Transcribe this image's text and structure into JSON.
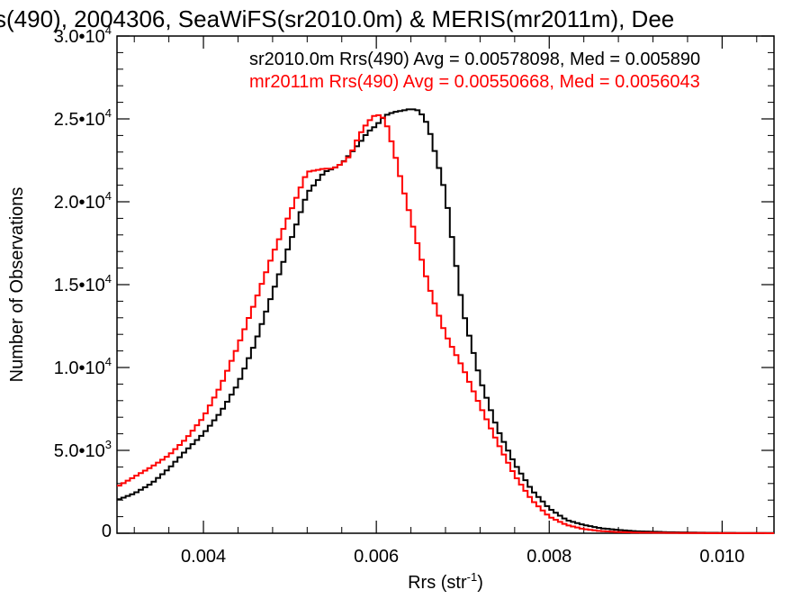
{
  "chart_data": {
    "type": "line",
    "title": "s(490), 2004306, SeaWiFS(sr2010.0m) & MERIS(mr2011m), Dee",
    "xlabel": "Rrs (str",
    "xlabel_sup": "-1",
    "xlabel_end": ")",
    "ylabel": "Number of Observations",
    "xlim": [
      0.003,
      0.0106
    ],
    "ylim": [
      0,
      30000
    ],
    "grid": false,
    "step_width": 5e-05,
    "x_ticks": [
      {
        "value": 0.004,
        "label": "0.004"
      },
      {
        "value": 0.006,
        "label": "0.006"
      },
      {
        "value": 0.008,
        "label": "0.008"
      },
      {
        "value": 0.01,
        "label": "0.010"
      }
    ],
    "y_ticks": [
      {
        "value": 0,
        "mant": "0",
        "exp": ""
      },
      {
        "value": 5000,
        "mant": "5.0•10",
        "exp": "3"
      },
      {
        "value": 10000,
        "mant": "1.0•10",
        "exp": "4"
      },
      {
        "value": 15000,
        "mant": "1.5•10",
        "exp": "4"
      },
      {
        "value": 20000,
        "mant": "2.0•10",
        "exp": "4"
      },
      {
        "value": 25000,
        "mant": "2.5•10",
        "exp": "4"
      },
      {
        "value": 30000,
        "mant": "3.0•10",
        "exp": "4"
      }
    ],
    "annotations": [
      {
        "text": "sr2010.0m Rrs(490) Avg = 0.00578098, Med = 0.005890",
        "color": "#000000"
      },
      {
        "text": "mr2011m Rrs(490) Avg = 0.00550668, Med = 0.0056043",
        "color": "#ff0000"
      }
    ],
    "series": [
      {
        "color": "#000000",
        "x": [
          0.003,
          0.0032,
          0.0034,
          0.0036,
          0.0038,
          0.004,
          0.0042,
          0.0044,
          0.0046,
          0.0048,
          0.005,
          0.0052,
          0.0054,
          0.0055,
          0.0056,
          0.0058,
          0.0059,
          0.006,
          0.0061,
          0.0062,
          0.0063,
          0.0064,
          0.0065,
          0.0066,
          0.0068,
          0.007,
          0.0072,
          0.0074,
          0.0076,
          0.0078,
          0.008,
          0.0082,
          0.0084,
          0.0086,
          0.0088,
          0.009,
          0.0094,
          0.0098,
          0.0102,
          0.0106
        ],
        "values": [
          2000,
          2400,
          3000,
          3900,
          5000,
          6000,
          7300,
          9000,
          11500,
          14500,
          17500,
          20500,
          21800,
          22000,
          22300,
          23500,
          24200,
          24600,
          25200,
          25400,
          25500,
          25600,
          25500,
          24600,
          20500,
          13500,
          9300,
          6300,
          4200,
          2600,
          1500,
          800,
          500,
          300,
          200,
          120,
          60,
          30,
          15,
          10
        ]
      },
      {
        "color": "#ff0000",
        "x": [
          0.003,
          0.0032,
          0.0034,
          0.0036,
          0.0038,
          0.004,
          0.0042,
          0.0044,
          0.0046,
          0.0048,
          0.005,
          0.0052,
          0.0054,
          0.0055,
          0.0056,
          0.0057,
          0.0058,
          0.0059,
          0.006,
          0.0061,
          0.0062,
          0.0063,
          0.0064,
          0.0066,
          0.0068,
          0.007,
          0.0072,
          0.0074,
          0.0076,
          0.0078,
          0.008,
          0.0082,
          0.0084,
          0.0086,
          0.0088,
          0.009,
          0.0094,
          0.0098,
          0.0102,
          0.0106
        ],
        "values": [
          2800,
          3400,
          4000,
          4700,
          5700,
          7000,
          8900,
          11300,
          14000,
          16800,
          19300,
          21800,
          22000,
          22000,
          22300,
          22800,
          24000,
          24800,
          25300,
          25000,
          23200,
          21000,
          19000,
          15000,
          12000,
          10000,
          7700,
          5500,
          3500,
          2000,
          1000,
          500,
          250,
          130,
          70,
          40,
          20,
          10,
          5,
          3
        ]
      }
    ]
  }
}
